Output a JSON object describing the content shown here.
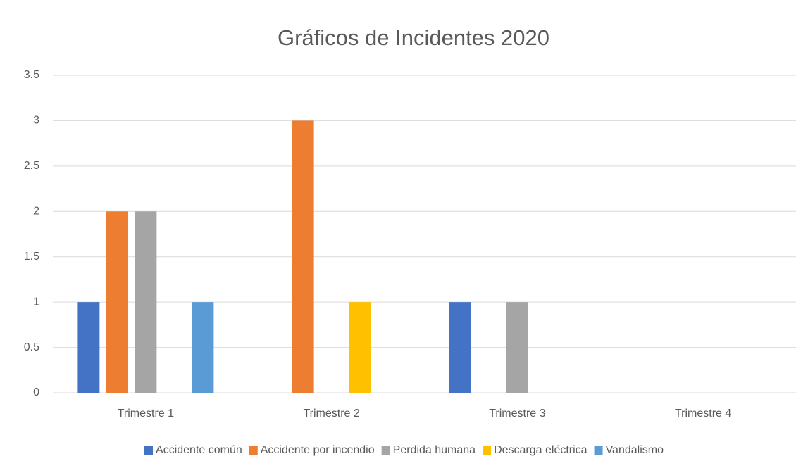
{
  "chart_data": {
    "type": "bar",
    "title": "Gráficos de Incidentes 2020",
    "categories": [
      "Trimestre 1",
      "Trimestre 2",
      "Trimestre 3",
      "Trimestre 4"
    ],
    "series": [
      {
        "name": "Accidente común",
        "color": "#4472c4",
        "values": [
          1,
          0,
          1,
          0
        ]
      },
      {
        "name": "Accidente por incendio",
        "color": "#ed7d31",
        "values": [
          2,
          3,
          0,
          0
        ]
      },
      {
        "name": "Perdida humana",
        "color": "#a5a5a5",
        "values": [
          2,
          0,
          1,
          0
        ]
      },
      {
        "name": "Descarga eléctrica",
        "color": "#ffc000",
        "values": [
          0,
          1,
          0,
          0
        ]
      },
      {
        "name": "Vandalismo",
        "color": "#5b9bd5",
        "values": [
          1,
          0,
          0,
          0
        ]
      }
    ],
    "ylim": [
      0,
      3.5
    ],
    "yticks": [
      0,
      0.5,
      1,
      1.5,
      2,
      2.5,
      3,
      3.5
    ],
    "grid": true,
    "legend": "bottom"
  }
}
